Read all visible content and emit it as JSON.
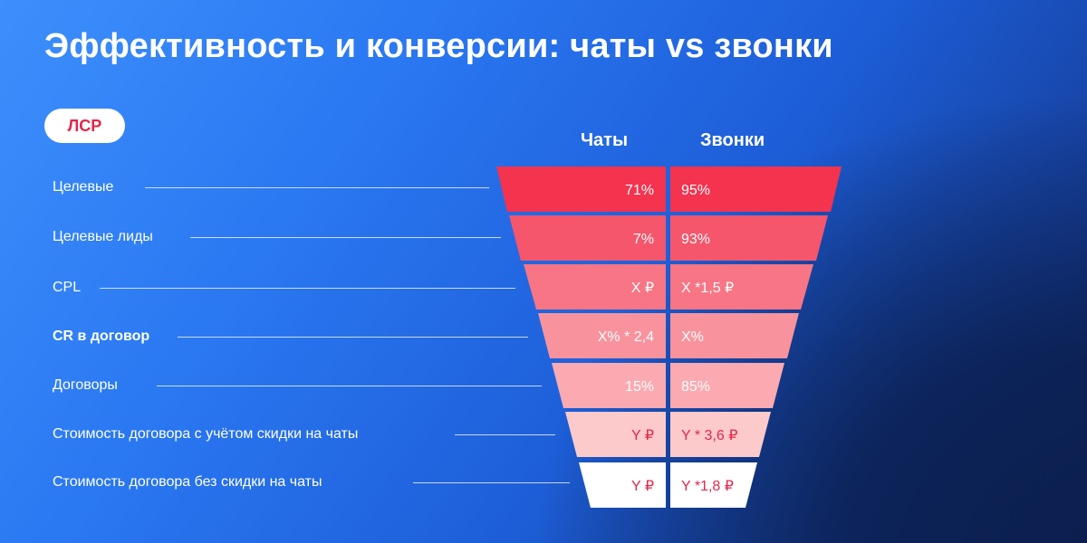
{
  "title": "Эффективность и конверсии: чаты vs звонки",
  "badge": "ЛСР",
  "columns": {
    "chats": "Чаты",
    "calls": "Звонки"
  },
  "colors": {
    "badge_text": "#e4264a",
    "rows": [
      "#f4334f",
      "#f5566b",
      "#f77584",
      "#f8939d",
      "#faaab0",
      "#fccacb",
      "#ffffff"
    ],
    "text_light": "#ffffff",
    "text_red": "#e4264a"
  },
  "rows": [
    {
      "label": "Целевые",
      "bold": false,
      "chats": "71%",
      "calls": "95%"
    },
    {
      "label": "Целевые лиды",
      "bold": false,
      "chats": "7%",
      "calls": "93%"
    },
    {
      "label": "CPL",
      "bold": false,
      "chats": "X ₽",
      "calls": "X *1,5 ₽"
    },
    {
      "label": "CR в договор",
      "bold": true,
      "chats": "X% * 2,4",
      "calls": "X%"
    },
    {
      "label": "Договоры",
      "bold": false,
      "chats": "15%",
      "calls": "85%"
    },
    {
      "label": "Стоимость договора с учётом скидки на чаты",
      "bold": false,
      "chats": "Y ₽",
      "calls": "Y * 3,6 ₽"
    },
    {
      "label": "Стоимость договора без скидки на чаты",
      "bold": false,
      "chats": "Y ₽",
      "calls": "Y *1,8 ₽"
    }
  ]
}
